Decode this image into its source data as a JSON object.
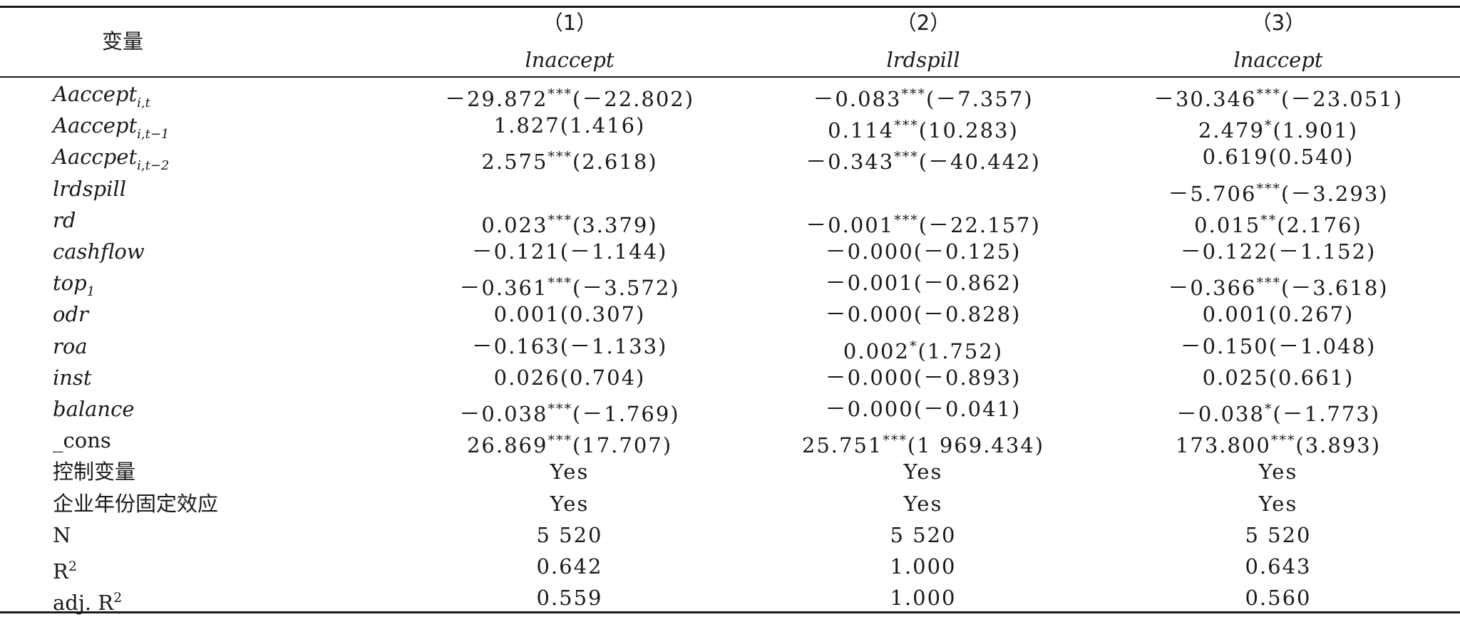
{
  "table": {
    "header": {
      "var_label": "变量",
      "columns": [
        {
          "num": "（1）",
          "dep": "lnaccept"
        },
        {
          "num": "（2）",
          "dep": "lrdspill"
        },
        {
          "num": "（3）",
          "dep": "lnaccept"
        }
      ]
    },
    "rows": [
      {
        "var": "Aaccept",
        "sub": "i,t",
        "cells": [
          {
            "coef": "－29.872",
            "stars": "***",
            "t": "(－22.802)"
          },
          {
            "coef": "－0.083",
            "stars": "***",
            "t": "(－7.357)"
          },
          {
            "coef": "－30.346",
            "stars": "***",
            "t": "(－23.051)"
          }
        ]
      },
      {
        "var": "Aaccept",
        "sub": "i,t−1",
        "cells": [
          {
            "coef": "1.827",
            "stars": "",
            "t": "(1.416)"
          },
          {
            "coef": "0.114",
            "stars": "***",
            "t": "(10.283)"
          },
          {
            "coef": "2.479",
            "stars": "*",
            "t": "(1.901)"
          }
        ]
      },
      {
        "var": "Aaccpet",
        "sub": "i,t−2",
        "cells": [
          {
            "coef": "2.575",
            "stars": "***",
            "t": "(2.618)"
          },
          {
            "coef": "－0.343",
            "stars": "***",
            "t": "(－40.442)"
          },
          {
            "coef": "0.619",
            "stars": "",
            "t": "(0.540)"
          }
        ]
      },
      {
        "var": "lrdspill",
        "sub": "",
        "cells": [
          {
            "coef": "",
            "stars": "",
            "t": ""
          },
          {
            "coef": "",
            "stars": "",
            "t": ""
          },
          {
            "coef": "－5.706",
            "stars": "***",
            "t": "(－3.293)"
          }
        ]
      },
      {
        "var": "rd",
        "sub": "",
        "cells": [
          {
            "coef": "0.023",
            "stars": "***",
            "t": "(3.379)"
          },
          {
            "coef": "－0.001",
            "stars": "***",
            "t": "(－22.157)"
          },
          {
            "coef": "0.015",
            "stars": "**",
            "t": "(2.176)"
          }
        ]
      },
      {
        "var": "cashflow",
        "sub": "",
        "cells": [
          {
            "coef": "－0.121",
            "stars": "",
            "t": "(－1.144)"
          },
          {
            "coef": "－0.000",
            "stars": "",
            "t": "(－0.125)"
          },
          {
            "coef": "－0.122",
            "stars": "",
            "t": "(－1.152)"
          }
        ]
      },
      {
        "var": "top",
        "sub": "1",
        "cells": [
          {
            "coef": "－0.361",
            "stars": "***",
            "t": "(－3.572)"
          },
          {
            "coef": "－0.001",
            "stars": "",
            "t": "(－0.862)"
          },
          {
            "coef": "－0.366",
            "stars": "***",
            "t": "(－3.618)"
          }
        ]
      },
      {
        "var": "odr",
        "sub": "",
        "cells": [
          {
            "coef": "0.001",
            "stars": "",
            "t": "(0.307)"
          },
          {
            "coef": "－0.000",
            "stars": "",
            "t": "(－0.828)"
          },
          {
            "coef": "0.001",
            "stars": "",
            "t": "(0.267)"
          }
        ]
      },
      {
        "var": "roa",
        "sub": "",
        "cells": [
          {
            "coef": "－0.163",
            "stars": "",
            "t": "(－1.133)"
          },
          {
            "coef": "0.002",
            "stars": "*",
            "t": "(1.752)"
          },
          {
            "coef": "－0.150",
            "stars": "",
            "t": "(－1.048)"
          }
        ]
      },
      {
        "var": "inst",
        "sub": "",
        "cells": [
          {
            "coef": "0.026",
            "stars": "",
            "t": "(0.704)"
          },
          {
            "coef": "－0.000",
            "stars": "",
            "t": "(－0.893)"
          },
          {
            "coef": "0.025",
            "stars": "",
            "t": "(0.661)"
          }
        ]
      },
      {
        "var": "balance",
        "sub": "",
        "cells": [
          {
            "coef": "－0.038",
            "stars": "***",
            "t": "(－1.769)"
          },
          {
            "coef": "－0.000",
            "stars": "",
            "t": "(－0.041)"
          },
          {
            "coef": "－0.038",
            "stars": "*",
            "t": "(－1.773)"
          }
        ]
      },
      {
        "var": "_cons",
        "sub": "",
        "plain": true,
        "cells": [
          {
            "coef": "26.869",
            "stars": "***",
            "t": "(17.707)"
          },
          {
            "coef": "25.751",
            "stars": "***",
            "t": "(1 969.434)"
          },
          {
            "coef": "173.800",
            "stars": "***",
            "t": "(3.893)"
          }
        ]
      },
      {
        "var": "控制变量",
        "sub": "",
        "plain": true,
        "cells": [
          {
            "coef": "Yes",
            "stars": "",
            "t": ""
          },
          {
            "coef": "Yes",
            "stars": "",
            "t": ""
          },
          {
            "coef": "Yes",
            "stars": "",
            "t": ""
          }
        ]
      },
      {
        "var": "企业年份固定效应",
        "sub": "",
        "plain": true,
        "cells": [
          {
            "coef": "Yes",
            "stars": "",
            "t": ""
          },
          {
            "coef": "Yes",
            "stars": "",
            "t": ""
          },
          {
            "coef": "Yes",
            "stars": "",
            "t": ""
          }
        ]
      },
      {
        "var": "N",
        "sub": "",
        "plain": true,
        "cells": [
          {
            "coef": "5 520",
            "stars": "",
            "t": ""
          },
          {
            "coef": "5 520",
            "stars": "",
            "t": ""
          },
          {
            "coef": "5 520",
            "stars": "",
            "t": ""
          }
        ]
      },
      {
        "var": "R",
        "sup": "2",
        "sub": "",
        "plain": true,
        "cells": [
          {
            "coef": "0.642",
            "stars": "",
            "t": ""
          },
          {
            "coef": "1.000",
            "stars": "",
            "t": ""
          },
          {
            "coef": "0.643",
            "stars": "",
            "t": ""
          }
        ]
      },
      {
        "var": "adj. R",
        "sup": "2",
        "sub": "",
        "plain": true,
        "cells": [
          {
            "coef": "0.559",
            "stars": "",
            "t": ""
          },
          {
            "coef": "1.000",
            "stars": "",
            "t": ""
          },
          {
            "coef": "0.560",
            "stars": "",
            "t": ""
          }
        ]
      }
    ]
  }
}
